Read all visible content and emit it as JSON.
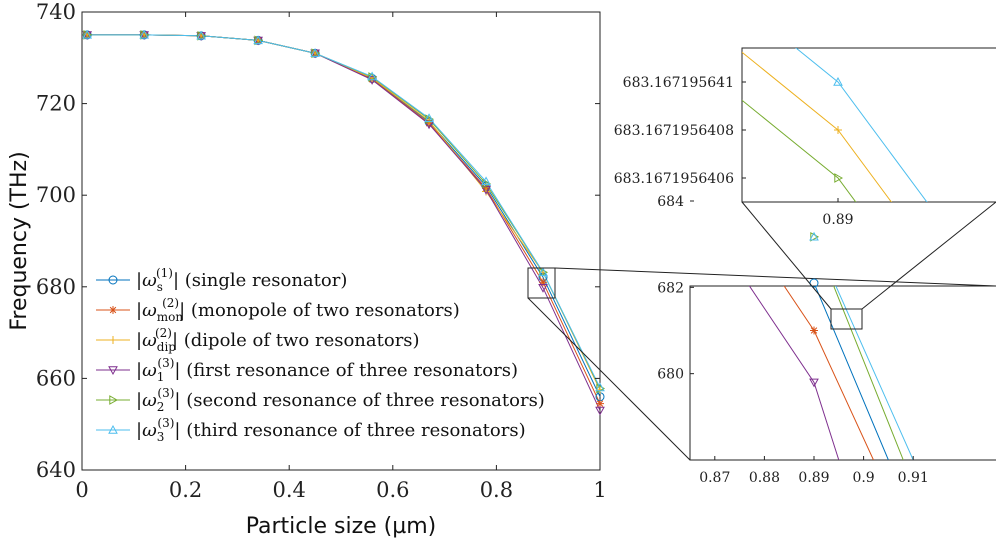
{
  "chart_data": [
    {
      "type": "line",
      "xlabel": "Particle size (µm)",
      "ylabel": "Frequency (THz)",
      "xlim": [
        0,
        1
      ],
      "ylim": [
        640,
        740
      ],
      "xticks": [
        0,
        0.2,
        0.4,
        0.6,
        0.8,
        1
      ],
      "xtick_labels": [
        "0",
        "0.2",
        "0.4",
        "0.6",
        "0.8",
        "1"
      ],
      "yticks": [
        640,
        660,
        680,
        700,
        720,
        740
      ],
      "ytick_labels": [
        "640",
        "660",
        "680",
        "700",
        "720",
        "740"
      ],
      "grid": false,
      "legend_position": "bottom-left",
      "x": [
        0.01,
        0.12,
        0.23,
        0.34,
        0.45,
        0.56,
        0.67,
        0.78,
        0.89,
        1.0
      ],
      "series": [
        {
          "name": "|ω_s^(1)| (single resonator)",
          "sym": "ω",
          "sub": "s",
          "sup": "(1)",
          "desc": "(single resonator)",
          "color": "#0072BD",
          "marker": "circle",
          "values": [
            735.0,
            735.0,
            734.8,
            733.8,
            731.0,
            725.5,
            716.0,
            702.0,
            682.1,
            656.0
          ]
        },
        {
          "name": "|ω_mon^(2)| (monopole of two resonators)",
          "sym": "ω",
          "sub": "mon",
          "sup": "(2)",
          "desc": "(monopole of two resonators)",
          "color": "#D95319",
          "marker": "star",
          "values": [
            735.0,
            735.0,
            734.8,
            733.8,
            731.0,
            725.3,
            715.7,
            701.5,
            681.0,
            654.5
          ]
        },
        {
          "name": "|ω_dip^(2)| (dipole of two resonators)",
          "sym": "ω",
          "sub": "dip",
          "sup": "(2)",
          "desc": "(dipole of two resonators)",
          "color": "#EDB120",
          "marker": "plus",
          "values": [
            735.0,
            735.0,
            734.8,
            733.8,
            731.0,
            725.6,
            716.2,
            700.8,
            683.17,
            657.5
          ]
        },
        {
          "name": "|ω_1^(3)| (first resonance of three resonators)",
          "sym": "ω",
          "sub": "1",
          "sup": "(3)",
          "desc": "(first resonance of three resonators)",
          "color": "#7E2F8E",
          "marker": "triangle-down",
          "values": [
            735.0,
            735.0,
            734.8,
            733.8,
            731.0,
            725.2,
            715.5,
            701.2,
            679.8,
            653.0
          ]
        },
        {
          "name": "|ω_2^(3)| (second resonance of three resonators)",
          "sym": "ω",
          "sub": "2",
          "sup": "(3)",
          "desc": "(second resonance of three resonators)",
          "color": "#77AC30",
          "marker": "triangle-right",
          "values": [
            735.0,
            735.0,
            734.8,
            733.8,
            731.0,
            725.8,
            716.6,
            702.5,
            683.17,
            657.8
          ]
        },
        {
          "name": "|ω_3^(3)| (third resonance of three resonators)",
          "sym": "ω",
          "sub": "3",
          "sup": "(3)",
          "desc": "(third resonance of three resonators)",
          "color": "#4DBEEE",
          "marker": "triangle-up",
          "values": [
            735.0,
            735.0,
            734.8,
            733.8,
            731.0,
            725.9,
            716.8,
            703.0,
            683.17,
            658.0
          ]
        }
      ]
    },
    {
      "type": "line",
      "role": "inset",
      "xlim": [
        0.865,
        0.915
      ],
      "ylim": [
        678,
        684
      ],
      "xticks": [
        0.87,
        0.88,
        0.89,
        0.9,
        0.91
      ],
      "xtick_labels": [
        "0.87",
        "0.88",
        "0.89",
        "0.9",
        "0.91"
      ],
      "yticks": [
        680,
        682,
        684
      ],
      "ytick_labels": [
        "680",
        "682",
        "684"
      ],
      "series": [
        {
          "color": "#0072BD",
          "marker": "circle",
          "x": [
            0.862,
            0.89,
            0.905
          ],
          "values": [
            686.9,
            682.1,
            678.0
          ]
        },
        {
          "color": "#D95319",
          "marker": "star",
          "x": [
            0.862,
            0.89,
            0.902
          ],
          "values": [
            685.8,
            681.0,
            678.0
          ]
        },
        {
          "color": "#7E2F8E",
          "marker": "triangle-down",
          "x": [
            0.862,
            0.89,
            0.895
          ],
          "values": [
            684.6,
            679.8,
            678.0
          ]
        },
        {
          "color": "#77AC30",
          "marker": "triangle-right",
          "x": [
            0.862,
            0.89,
            0.908
          ],
          "values": [
            688.0,
            683.17,
            678.0
          ]
        },
        {
          "color": "#4DBEEE",
          "marker": "triangle-up",
          "x": [
            0.862,
            0.89,
            0.91
          ],
          "values": [
            688.1,
            683.17,
            678.0
          ]
        }
      ]
    },
    {
      "type": "line",
      "role": "inset-zoom",
      "xlim": [
        0.8885,
        0.8915
      ],
      "xticks": [
        0.89
      ],
      "xtick_labels": [
        "0.89"
      ],
      "yticks_values": [
        683.1671956406,
        683.1671956408,
        683.167195641
      ],
      "ytick_labels": [
        "683.1671956406",
        "683.1671956408",
        "683.167195641"
      ],
      "series": [
        {
          "color": "#77AC30",
          "marker": "triangle-right",
          "y_at_tick": "683.1671956406"
        },
        {
          "color": "#EDB120",
          "marker": "plus",
          "y_at_tick": "683.1671956408"
        },
        {
          "color": "#4DBEEE",
          "marker": "triangle-up",
          "y_at_tick": "683.167195641"
        }
      ]
    }
  ]
}
